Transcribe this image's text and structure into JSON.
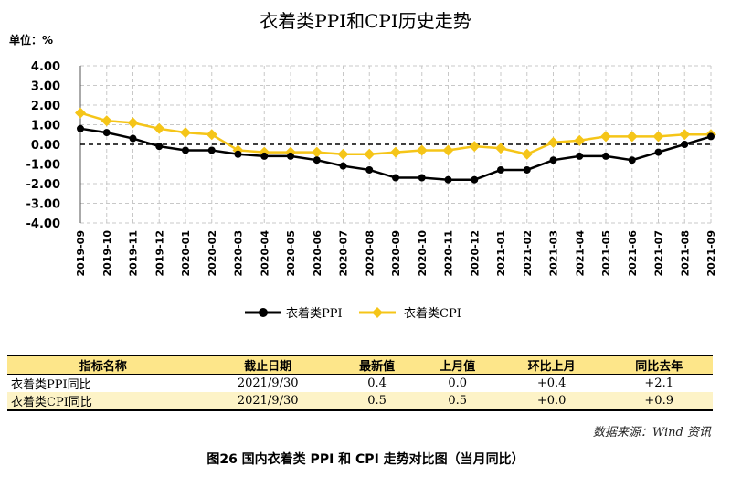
{
  "chart_data": {
    "type": "line",
    "title": "衣着类PPI和CPI历史走势",
    "unit_label": "单位：%",
    "ylim": [
      -4.0,
      4.0
    ],
    "yticks": [
      "4.00",
      "3.00",
      "2.00",
      "1.00",
      "0.00",
      "-1.00",
      "-2.00",
      "-3.00",
      "-4.00"
    ],
    "grid": true,
    "legend_position": "bottom",
    "x": [
      "2019-09",
      "2019-10",
      "2019-11",
      "2019-12",
      "2020-01",
      "2020-02",
      "2020-03",
      "2020-04",
      "2020-05",
      "2020-06",
      "2020-07",
      "2020-08",
      "2020-09",
      "2020-10",
      "2020-11",
      "2020-12",
      "2021-01",
      "2021-02",
      "2021-03",
      "2021-04",
      "2021-05",
      "2021-06",
      "2021-07",
      "2021-08",
      "2021-09"
    ],
    "series": [
      {
        "name": "衣着类PPI",
        "color": "#000000",
        "values": [
          0.8,
          0.6,
          0.3,
          -0.1,
          -0.3,
          -0.3,
          -0.5,
          -0.6,
          -0.6,
          -0.8,
          -1.1,
          -1.3,
          -1.7,
          -1.7,
          -1.8,
          -1.8,
          -1.3,
          -1.3,
          -0.8,
          -0.6,
          -0.6,
          -0.8,
          -0.4,
          0.0,
          0.4
        ]
      },
      {
        "name": "衣着类CPI",
        "color": "#f5c518",
        "values": [
          1.6,
          1.2,
          1.1,
          0.8,
          0.6,
          0.5,
          -0.3,
          -0.4,
          -0.4,
          -0.4,
          -0.5,
          -0.5,
          -0.4,
          -0.3,
          -0.3,
          -0.1,
          -0.2,
          -0.5,
          0.1,
          0.2,
          0.4,
          0.4,
          0.4,
          0.5,
          0.5
        ]
      }
    ]
  },
  "table": {
    "headers": [
      "指标名称",
      "截止日期",
      "最新值",
      "上月值",
      "环比上月",
      "同比去年"
    ],
    "rows": [
      [
        "衣着类PPI同比",
        "2021/9/30",
        "0.4",
        "0.0",
        "+0.4",
        "+2.1"
      ],
      [
        "衣着类CPI同比",
        "2021/9/30",
        "0.5",
        "0.5",
        "+0.0",
        "+0.9"
      ]
    ]
  },
  "source": "数据来源：Wind 资讯",
  "caption": "图26   国内衣着类 PPI 和 CPI 走势对比图（当月同比）"
}
